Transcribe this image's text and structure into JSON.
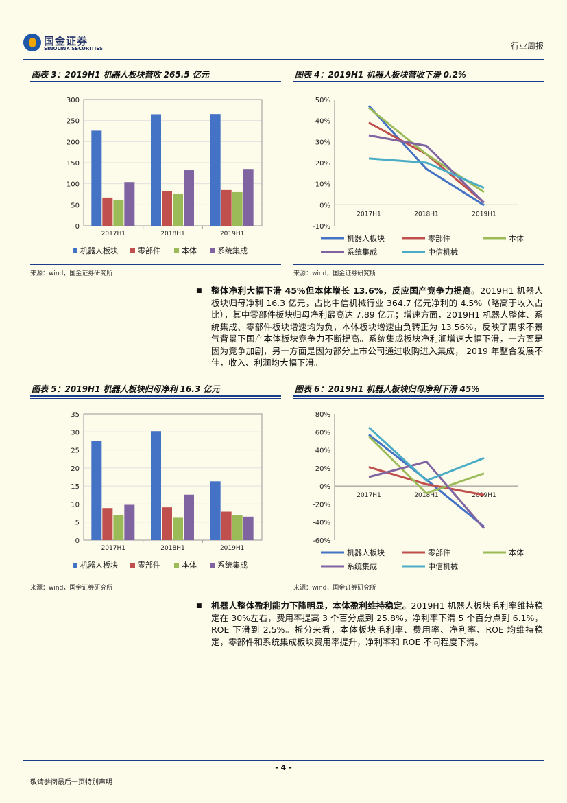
{
  "header": {
    "logo_cn": "国金证券",
    "logo_en": "SINOLINK SECURITIES",
    "report_type": "行业周报"
  },
  "figures": {
    "fig3_title": "图表 3：2019H1 机器人板块营收 265.5 亿元",
    "fig4_title": "图表 4：2019H1 机器人板块营收下滑 0.2%",
    "fig5_title": "图表 5：2019H1 机器人板块归母净利 16.3 亿元",
    "fig6_title": "图表 6：2019H1 机器人板块归母净利下滑 45%",
    "source": "来源：wind，国金证券研究所"
  },
  "colors": {
    "robot": "#4472c4",
    "parts": "#c0504d",
    "body": "#9bbb59",
    "integration": "#8064a2",
    "citic": "#4bacc6"
  },
  "paragraphs": {
    "p1_bold": "整体净利大幅下滑 45%但本体增长 13.6%，反应国产竞争力提高。",
    "p1_text": "2019H1 机器人板块归母净利 16.3 亿元，占比中信机械行业 364.7 亿元净利的 4.5%（略高于收入占比），其中零部件板块归母净利最高达 7.89 亿元；增速方面，2019H1 机器人整体、系统集成、零部件板块增速均为负，本体板块增速由负转正为 13.56%，反映了需求不景气背景下国产本体板块竞争力不断提高。系统集成板块净利润增速大幅下滑，一方面是因为竞争加剧，另一方面是因为部分上市公司通过收购进入集成， 2019 年整合发展不佳，收入、利润均大幅下滑。",
    "p2_bold": "机器人整体盈利能力下降明显，本体盈利维持稳定。",
    "p2_text": "2019H1 机器人板块毛利率维持稳定在 30%左右，费用率提高 3 个百分点到 25.8%，净利率下滑 5 个百分点到 6.1%，ROE 下滑到 2.5%。拆分来看，本体板块毛利率、费用率、净利率、ROE 均维持稳定，零部件和系统集成板块费用率提升，净利率和 ROE 不同程度下滑。"
  },
  "footer": {
    "page": "- 4 -",
    "disclaimer": "敬请参阅最后一页特别声明"
  },
  "chart_data": [
    {
      "id": "fig3",
      "type": "bar",
      "categories": [
        "2017H1",
        "2018H1",
        "2019H1"
      ],
      "series": [
        {
          "name": "机器人板块",
          "values": [
            226,
            265,
            265.5
          ]
        },
        {
          "name": "零部件",
          "values": [
            67,
            83,
            85
          ]
        },
        {
          "name": "本体",
          "values": [
            62,
            75,
            80
          ]
        },
        {
          "name": "系统集成",
          "values": [
            104,
            132,
            135
          ]
        }
      ],
      "ylim": [
        0,
        300
      ],
      "yticks": [
        "0",
        "50",
        "100",
        "150",
        "200",
        "250",
        "300"
      ],
      "legend": "bottom"
    },
    {
      "id": "fig4",
      "type": "line",
      "categories": [
        "2017H1",
        "2018H1",
        "2019H1"
      ],
      "series": [
        {
          "name": "机器人板块",
          "values": [
            0.47,
            0.17,
            -0.002
          ]
        },
        {
          "name": "零部件",
          "values": [
            0.39,
            0.24,
            0.01
          ]
        },
        {
          "name": "本体",
          "values": [
            0.46,
            0.24,
            0.06
          ]
        },
        {
          "name": "系统集成",
          "values": [
            0.33,
            0.28,
            0.01
          ]
        },
        {
          "name": "中信机械",
          "values": [
            0.22,
            0.2,
            0.08
          ]
        }
      ],
      "ylim": [
        -0.1,
        0.5
      ],
      "yticks": [
        "-10%",
        "0%",
        "10%",
        "20%",
        "30%",
        "40%",
        "50%"
      ],
      "legend": "bottom"
    },
    {
      "id": "fig5",
      "type": "bar",
      "categories": [
        "2017H1",
        "2018H1",
        "2019H1"
      ],
      "series": [
        {
          "name": "机器人板块",
          "values": [
            27.4,
            30.2,
            16.3
          ]
        },
        {
          "name": "零部件",
          "values": [
            8.9,
            9.1,
            7.89
          ]
        },
        {
          "name": "本体",
          "values": [
            6.9,
            6.2,
            6.9
          ]
        },
        {
          "name": "系统集成",
          "values": [
            9.8,
            12.6,
            6.5
          ]
        }
      ],
      "ylim": [
        0,
        35
      ],
      "yticks": [
        "0",
        "5",
        "10",
        "15",
        "20",
        "25",
        "30",
        "35"
      ],
      "legend": "bottom"
    },
    {
      "id": "fig6",
      "type": "line",
      "categories": [
        "2017H1",
        "2018H1",
        "2019H1"
      ],
      "series": [
        {
          "name": "机器人板块",
          "values": [
            0.57,
            0.07,
            -0.45
          ]
        },
        {
          "name": "零部件",
          "values": [
            0.21,
            0.02,
            -0.1
          ]
        },
        {
          "name": "本体",
          "values": [
            0.55,
            -0.08,
            0.14
          ]
        },
        {
          "name": "系统集成",
          "values": [
            0.1,
            0.27,
            -0.47
          ]
        },
        {
          "name": "中信机械",
          "values": [
            0.65,
            0.06,
            0.31
          ]
        }
      ],
      "ylim": [
        -0.6,
        0.8
      ],
      "yticks": [
        "-60%",
        "-40%",
        "-20%",
        "0%",
        "20%",
        "40%",
        "60%",
        "80%"
      ],
      "legend": "bottom"
    }
  ]
}
